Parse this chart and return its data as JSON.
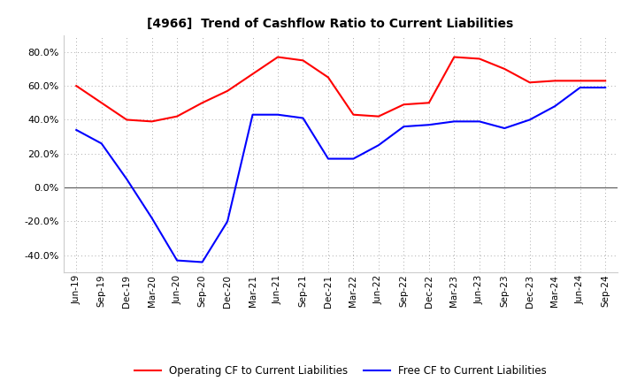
{
  "title": "[4966]  Trend of Cashflow Ratio to Current Liabilities",
  "x_labels": [
    "Jun-19",
    "Sep-19",
    "Dec-19",
    "Mar-20",
    "Jun-20",
    "Sep-20",
    "Dec-20",
    "Mar-21",
    "Jun-21",
    "Sep-21",
    "Dec-21",
    "Mar-22",
    "Jun-22",
    "Sep-22",
    "Dec-22",
    "Mar-23",
    "Jun-23",
    "Sep-23",
    "Dec-23",
    "Mar-24",
    "Jun-24",
    "Sep-24"
  ],
  "operating_cf": [
    0.6,
    0.5,
    0.4,
    0.39,
    0.42,
    0.5,
    0.57,
    0.67,
    0.77,
    0.75,
    0.65,
    0.43,
    0.42,
    0.49,
    0.5,
    0.77,
    0.76,
    0.7,
    0.62,
    0.63,
    0.63,
    0.63
  ],
  "free_cf": [
    0.34,
    0.26,
    0.05,
    -0.18,
    -0.43,
    -0.44,
    -0.2,
    0.43,
    0.43,
    0.41,
    0.17,
    0.17,
    0.25,
    0.36,
    0.37,
    0.39,
    0.39,
    0.35,
    0.4,
    0.48,
    0.59,
    0.59
  ],
  "operating_color": "#ff0000",
  "free_color": "#0000ff",
  "ylim": [
    -0.5,
    0.9
  ],
  "yticks": [
    -0.4,
    -0.2,
    0.0,
    0.2,
    0.4,
    0.6,
    0.8
  ],
  "background_color": "#ffffff",
  "grid_color": "#aaaaaa",
  "legend_operating": "Operating CF to Current Liabilities",
  "legend_free": "Free CF to Current Liabilities"
}
